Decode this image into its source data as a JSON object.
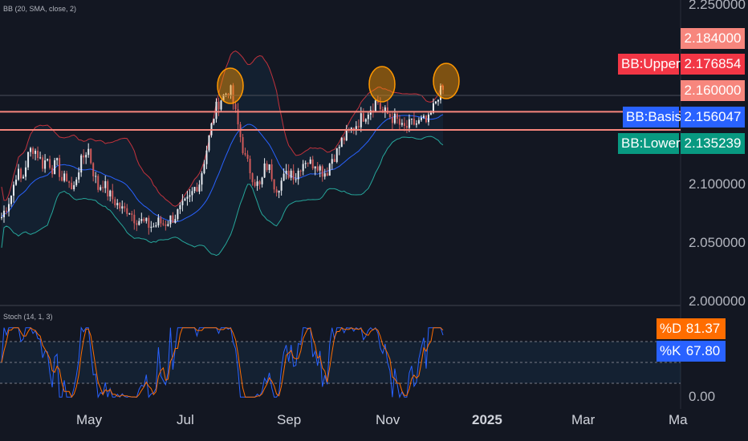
{
  "indicators": {
    "bb_label": "BB (20, SMA, close, 2)",
    "stoch_label": "Stoch (14, 1, 3)"
  },
  "price_axis": {
    "ticks": [
      "2.250000",
      "2.100000",
      "2.050000",
      "2.000000"
    ]
  },
  "osc_axis": {
    "tick": "0.00"
  },
  "time_axis": {
    "ticks": [
      "May",
      "Jul",
      "Sep",
      "Nov",
      "2025",
      "Mar",
      "Ma"
    ]
  },
  "price_tags": {
    "p2184": "2.184000",
    "upper_label": "BB:Upper",
    "upper_value": "2.176854",
    "p2160": "2.160000",
    "basis_label": "BB:Basis",
    "basis_value": "2.156047",
    "lower_label": "BB:Lower",
    "lower_value": "2.135239"
  },
  "stoch_tags": {
    "d_label": "%D",
    "d_value": "81.37",
    "k_label": "%K",
    "k_value": "67.80"
  },
  "colors": {
    "background": "#131722",
    "candle_up": "#e8ecf1",
    "candle_down": "#d05a5a",
    "bb_upper": "#c2323c",
    "bb_basis": "#2962ff",
    "bb_lower": "#26a69a",
    "hline": "#f7867d",
    "circle": "#ff9800",
    "stoch_k": "#2962ff",
    "stoch_d": "#ff6d00",
    "tag_upper": "#f23645",
    "tag_price": "#f7867d",
    "tag_basis": "#2962ff",
    "tag_lower": "#089981",
    "tag_d": "#ff6d00",
    "tag_k": "#2962ff"
  },
  "chart_data": {
    "type": "candlestick",
    "y_range": [
      2.0,
      2.25
    ],
    "horizontal_levels": [
      2.16,
      2.1445
    ],
    "highlighted_peaks": 3,
    "price_path": [
      [
        2.07,
        2.08
      ],
      [
        2.09,
        2.11
      ],
      [
        2.1,
        2.12
      ],
      [
        2.13,
        2.125
      ],
      [
        2.115,
        2.12
      ],
      [
        2.112,
        2.115
      ],
      [
        2.1,
        2.105
      ],
      [
        2.09,
        2.11
      ],
      [
        2.12,
        2.13
      ],
      [
        2.11,
        2.095
      ],
      [
        2.1,
        2.09
      ],
      [
        2.085,
        2.08
      ],
      [
        2.075,
        2.078
      ],
      [
        2.07,
        2.068
      ],
      [
        2.065,
        2.063
      ],
      [
        2.062,
        2.066
      ],
      [
        2.064,
        2.068
      ],
      [
        2.07,
        2.075
      ],
      [
        2.08,
        2.085
      ],
      [
        2.095,
        2.1
      ],
      [
        2.12,
        2.14
      ],
      [
        2.16,
        2.17
      ],
      [
        2.175,
        2.18
      ],
      [
        2.16,
        2.14
      ],
      [
        2.12,
        2.11
      ],
      [
        2.1,
        2.095
      ],
      [
        2.115,
        2.11
      ],
      [
        2.095,
        2.1
      ],
      [
        2.105,
        2.11
      ],
      [
        2.105,
        2.115
      ],
      [
        2.12,
        2.115
      ],
      [
        2.118,
        2.11
      ],
      [
        2.108,
        2.12
      ],
      [
        2.125,
        2.135
      ],
      [
        2.14,
        2.145
      ],
      [
        2.15,
        2.155
      ],
      [
        2.16,
        2.165
      ],
      [
        2.17,
        2.16
      ],
      [
        2.158,
        2.155
      ],
      [
        2.152,
        2.145
      ],
      [
        2.147,
        2.15
      ],
      [
        2.15,
        2.152
      ],
      [
        2.15,
        2.162
      ],
      [
        2.175,
        2.178
      ]
    ],
    "stoch_k_range": [
      0,
      100
    ],
    "stoch_bands": [
      80,
      20
    ]
  }
}
